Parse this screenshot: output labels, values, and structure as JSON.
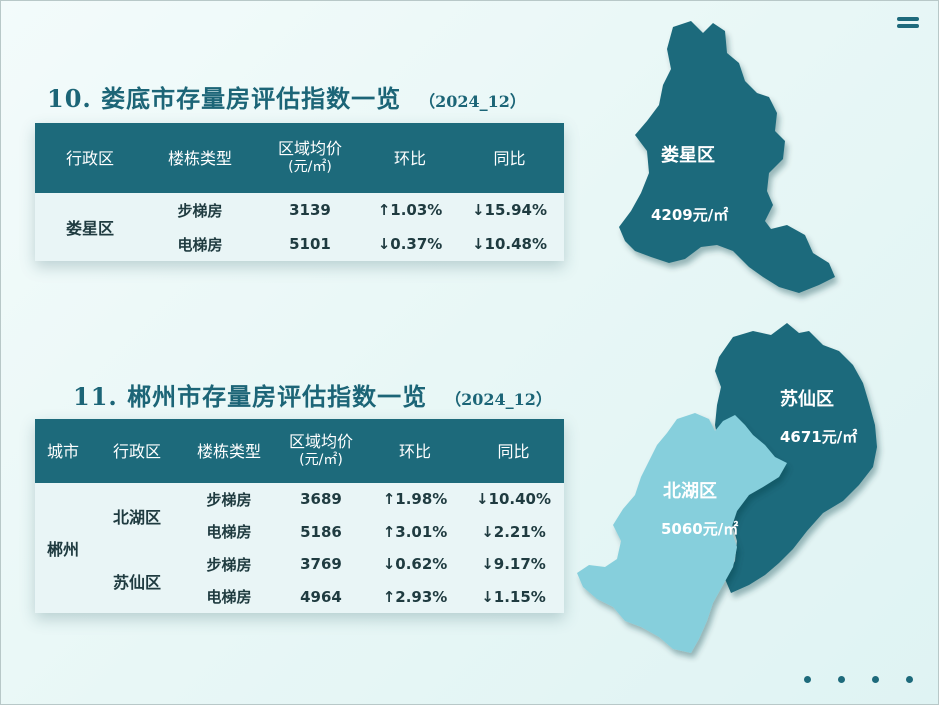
{
  "section10": {
    "title": "10. 娄底市存量房评估指数一览",
    "date": "（2024_12）",
    "headers": [
      "行政区",
      "楼栋类型",
      "区域均价",
      "(元/㎡)",
      "环比",
      "同比"
    ],
    "district": "娄星区",
    "rows": [
      {
        "type": "步梯房",
        "price": "3139",
        "mom": "↑1.03%",
        "yoy": "↓15.94%"
      },
      {
        "type": "电梯房",
        "price": "5101",
        "mom": "↓0.37%",
        "yoy": "↓10.48%"
      }
    ]
  },
  "section11": {
    "title": "11. 郴州市存量房评估指数一览",
    "date": "（2024_12）",
    "headers": [
      "城市",
      "行政区",
      "楼栋类型",
      "区域均价",
      "(元/㎡)",
      "环比",
      "同比"
    ],
    "city": "郴州",
    "districts": [
      "北湖区",
      "苏仙区"
    ],
    "rows": [
      {
        "type": "步梯房",
        "price": "3689",
        "mom": "↑1.98%",
        "yoy": "↓10.40%"
      },
      {
        "type": "电梯房",
        "price": "5186",
        "mom": "↑3.01%",
        "yoy": "↓2.21%"
      },
      {
        "type": "步梯房",
        "price": "3769",
        "mom": "↓0.62%",
        "yoy": "↓9.17%"
      },
      {
        "type": "电梯房",
        "price": "4964",
        "mom": "↑2.93%",
        "yoy": "↓1.15%"
      }
    ]
  },
  "maps": {
    "louxing": {
      "name": "娄星区",
      "price": "4209元/㎡",
      "color": "#1d6a7b"
    },
    "suxian": {
      "name": "苏仙区",
      "price": "4671元/㎡",
      "color": "#1d6a7b"
    },
    "beihu": {
      "name": "北湖区",
      "price": "5060元/㎡",
      "color": "#86cfdc"
    }
  },
  "colors": {
    "accent": "#1d6a7b",
    "up": "#d62020",
    "down": "#3aa595"
  },
  "icons": {
    "menu": "menu-icon"
  }
}
